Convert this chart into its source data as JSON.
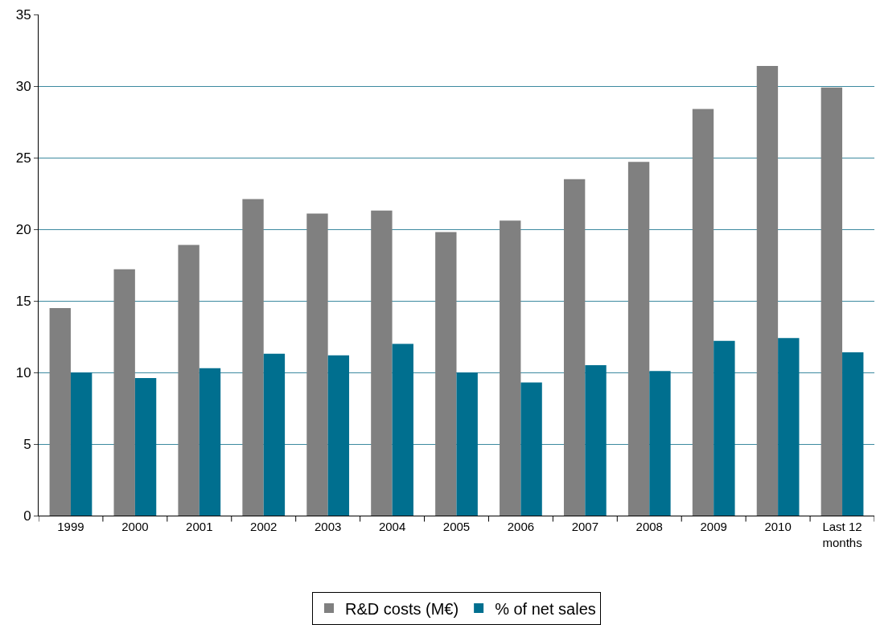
{
  "chart_data": {
    "type": "bar",
    "categories": [
      "1999",
      "2000",
      "2001",
      "2002",
      "2003",
      "2004",
      "2005",
      "2006",
      "2007",
      "2008",
      "2009",
      "2010",
      "Last 12 months"
    ],
    "series": [
      {
        "name": "R&D costs (M€)",
        "color": "#808080",
        "values": [
          14.5,
          17.2,
          18.9,
          22.1,
          21.1,
          21.3,
          19.8,
          20.6,
          23.5,
          24.7,
          28.4,
          31.4,
          29.9
        ]
      },
      {
        "name": "% of net sales",
        "color": "#006f8f",
        "values": [
          10.0,
          9.6,
          10.3,
          11.3,
          11.2,
          12.0,
          10.0,
          9.3,
          10.5,
          10.1,
          12.2,
          12.4,
          11.4
        ]
      }
    ],
    "ylim": [
      0,
      35
    ],
    "yticks": [
      0,
      5,
      10,
      15,
      20,
      25,
      30,
      35
    ],
    "grid": "y",
    "legend": "bottom"
  }
}
